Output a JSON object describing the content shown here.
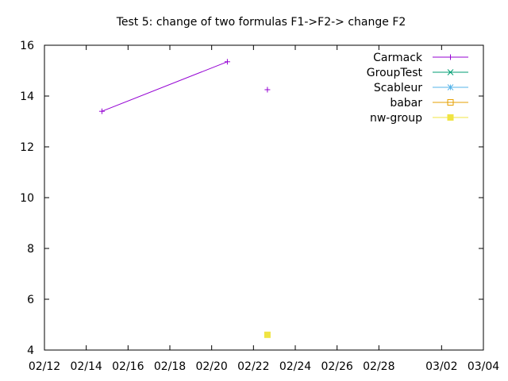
{
  "chart_data": {
    "type": "line",
    "title": "Test 5: change of two formulas F1->F2-> change F2",
    "xlabel": "",
    "ylabel": "",
    "x_ticks": [
      "02/12",
      "02/14",
      "02/16",
      "02/18",
      "02/20",
      "02/22",
      "02/24",
      "02/26",
      "02/28",
      "03/02",
      "03/04"
    ],
    "xlim": [
      "02/12",
      "03/04"
    ],
    "y_ticks": [
      4,
      6,
      8,
      10,
      12,
      14,
      16
    ],
    "ylim": [
      4,
      16
    ],
    "grid": false,
    "legend_position": "top-right",
    "series": [
      {
        "name": "Carmack",
        "color": "#9400d3",
        "marker": "plus",
        "points": [
          {
            "x": "02/14 18:00",
            "y": 13.4
          },
          {
            "x": "02/20 18:00",
            "y": 15.35
          },
          {
            "break": true
          },
          {
            "x": "02/22 16:00",
            "y": 14.25
          }
        ]
      },
      {
        "name": "GroupTest",
        "color": "#009e73",
        "marker": "cross",
        "points": []
      },
      {
        "name": "Scableur",
        "color": "#56b4e9",
        "marker": "star",
        "points": []
      },
      {
        "name": "babar",
        "color": "#e69f00",
        "marker": "open-square",
        "points": []
      },
      {
        "name": "nw-group",
        "color": "#f0e442",
        "marker": "filled-square",
        "points": [
          {
            "x": "02/22 16:00",
            "y": 4.6
          }
        ]
      }
    ]
  }
}
